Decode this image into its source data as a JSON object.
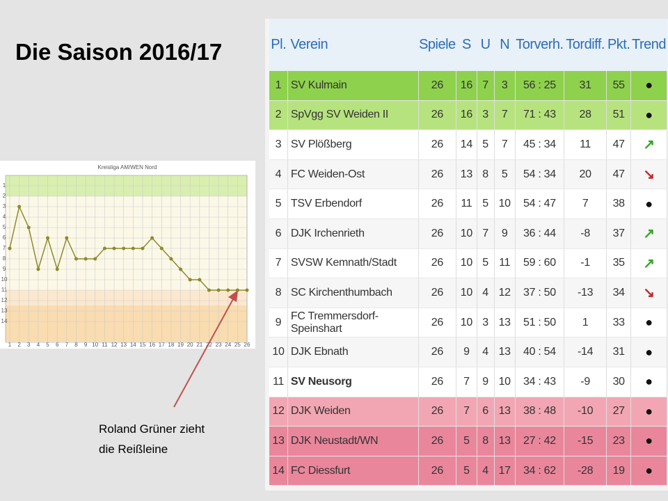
{
  "slide_title": "Die Saison 2016/17",
  "chart_data": {
    "type": "line",
    "title": "Kreisliga AM/WEN Nord",
    "x": [
      1,
      2,
      3,
      4,
      5,
      6,
      7,
      8,
      9,
      10,
      11,
      12,
      13,
      14,
      15,
      16,
      17,
      18,
      19,
      20,
      21,
      22,
      23,
      24,
      25,
      26
    ],
    "series": [
      {
        "name": "SV Neusorg",
        "color": "#8c8a2a",
        "values": [
          7,
          3,
          5,
          9,
          6,
          9,
          6,
          8,
          8,
          8,
          7,
          7,
          7,
          7,
          7,
          6,
          7,
          8,
          9,
          10,
          10,
          11,
          11,
          11,
          11,
          11
        ]
      }
    ],
    "xlim": [
      1,
      26
    ],
    "ylim": [
      16,
      0
    ],
    "xticks": [
      1,
      2,
      3,
      4,
      5,
      6,
      7,
      8,
      9,
      10,
      11,
      12,
      13,
      14,
      15,
      16,
      17,
      18,
      19,
      20,
      21,
      22,
      23,
      24,
      25,
      26
    ],
    "yticks": [
      1,
      2,
      3,
      4,
      5,
      6,
      7,
      8,
      9,
      10,
      11,
      12,
      13,
      14
    ],
    "grid": true,
    "legend": false
  },
  "annotation": [
    "Roland Grüner zieht",
    "die Reißleine"
  ],
  "table": {
    "header": [
      "Pl.",
      "Verein",
      "Spiele",
      "S",
      "U",
      "N",
      "Torverh.",
      "Tordiff.",
      "Pkt.",
      "Trend"
    ],
    "rows": [
      [
        1,
        "SV Kulmain",
        26,
        16,
        7,
        3,
        "56 : 25",
        31,
        55,
        "●"
      ],
      [
        2,
        "SpVgg SV Weiden II",
        26,
        16,
        3,
        7,
        "71 : 43",
        28,
        51,
        "●"
      ],
      [
        3,
        "SV Plößberg",
        26,
        14,
        5,
        7,
        "45 : 34",
        11,
        47,
        "↗"
      ],
      [
        4,
        "FC Weiden-Ost",
        26,
        13,
        8,
        5,
        "54 : 34",
        20,
        47,
        "↘"
      ],
      [
        5,
        "TSV Erbendorf",
        26,
        11,
        5,
        10,
        "54 : 47",
        7,
        38,
        "●"
      ],
      [
        6,
        "DJK Irchenrieth",
        26,
        10,
        7,
        9,
        "36 : 44",
        -8,
        37,
        "↗"
      ],
      [
        7,
        "SVSW Kemnath/Stadt",
        26,
        10,
        5,
        11,
        "59 : 60",
        -1,
        35,
        "↗"
      ],
      [
        8,
        "SC Kirchenthumbach",
        26,
        10,
        4,
        12,
        "37 : 50",
        -13,
        34,
        "↘"
      ],
      [
        9,
        "FC Tremmersdorf-Speinshart",
        26,
        10,
        3,
        13,
        "51 : 50",
        1,
        33,
        "●"
      ],
      [
        10,
        "DJK Ebnath",
        26,
        9,
        4,
        13,
        "40 : 54",
        -14,
        31,
        "●"
      ],
      [
        11,
        "SV Neusorg",
        26,
        7,
        9,
        10,
        "34 : 43",
        -9,
        30,
        "●"
      ],
      [
        12,
        "DJK Weiden",
        26,
        7,
        6,
        13,
        "38 : 48",
        -10,
        27,
        "●"
      ],
      [
        13,
        "DJK Neustadt/WN",
        26,
        5,
        8,
        13,
        "27 : 42",
        -15,
        23,
        "●"
      ],
      [
        14,
        "FC Diessfurt",
        26,
        5,
        4,
        17,
        "34 : 62",
        -28,
        19,
        "●"
      ]
    ]
  }
}
